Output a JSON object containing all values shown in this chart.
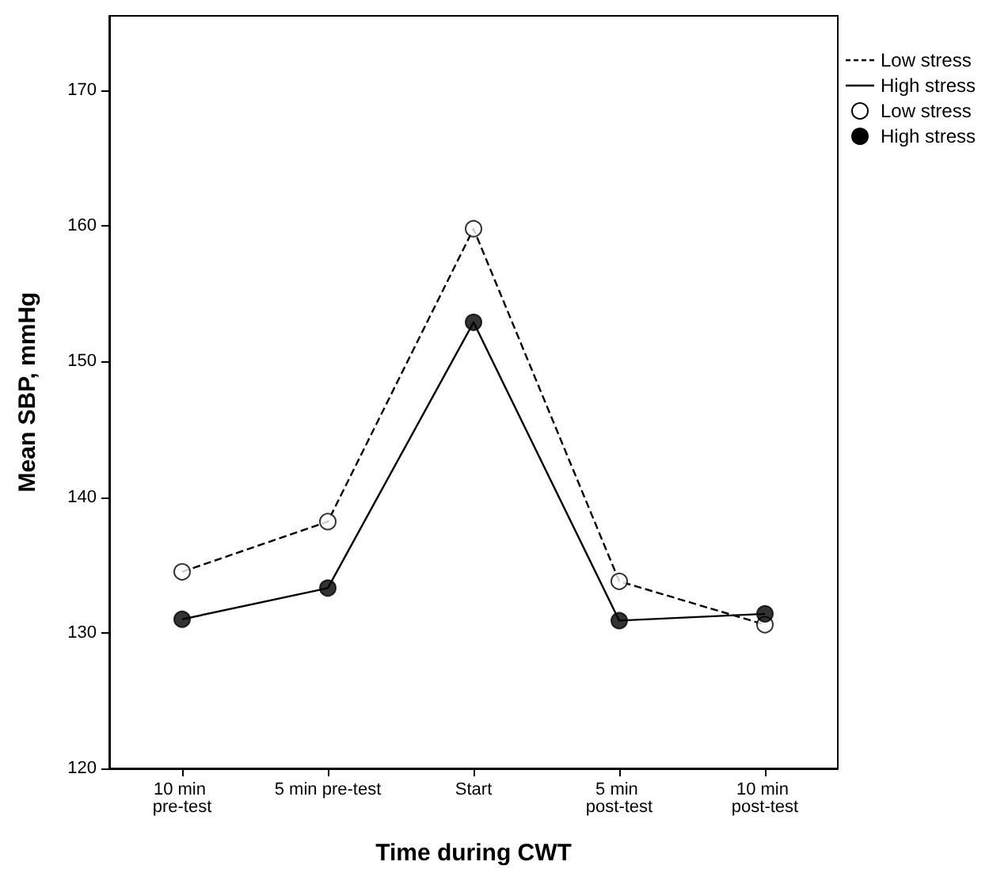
{
  "chart_data": {
    "type": "line",
    "xlabel": "Time during CWT",
    "ylabel": "Mean SBP, mmHg",
    "categories": [
      "10 min pre-test",
      "5 min pre-test",
      "Start",
      "5 min post-test",
      "10 min post-test"
    ],
    "series": [
      {
        "name": "Low stress",
        "color": "#000000",
        "line_style": "dashed",
        "marker": "none",
        "values": [
          134.5,
          138.2,
          159.8,
          133.8,
          130.6
        ]
      },
      {
        "name": "High stress",
        "color": "#000000",
        "line_style": "solid",
        "marker": "none",
        "values": [
          131.0,
          133.3,
          152.9,
          130.9,
          131.4
        ]
      },
      {
        "name": "Low stress",
        "type": "scatter",
        "color": "#ffffff",
        "marker": "circle",
        "values": [
          134.5,
          138.2,
          159.8,
          133.8,
          130.6
        ]
      },
      {
        "name": "High stress",
        "type": "scatter",
        "color": "#000000",
        "marker": "circle",
        "values": [
          131.0,
          133.3,
          152.9,
          130.9,
          131.4
        ]
      }
    ],
    "ylim": [
      120,
      175.5
    ],
    "yticks": [
      120,
      130,
      140,
      150,
      160,
      170
    ],
    "grid": false,
    "legend": "top right"
  }
}
